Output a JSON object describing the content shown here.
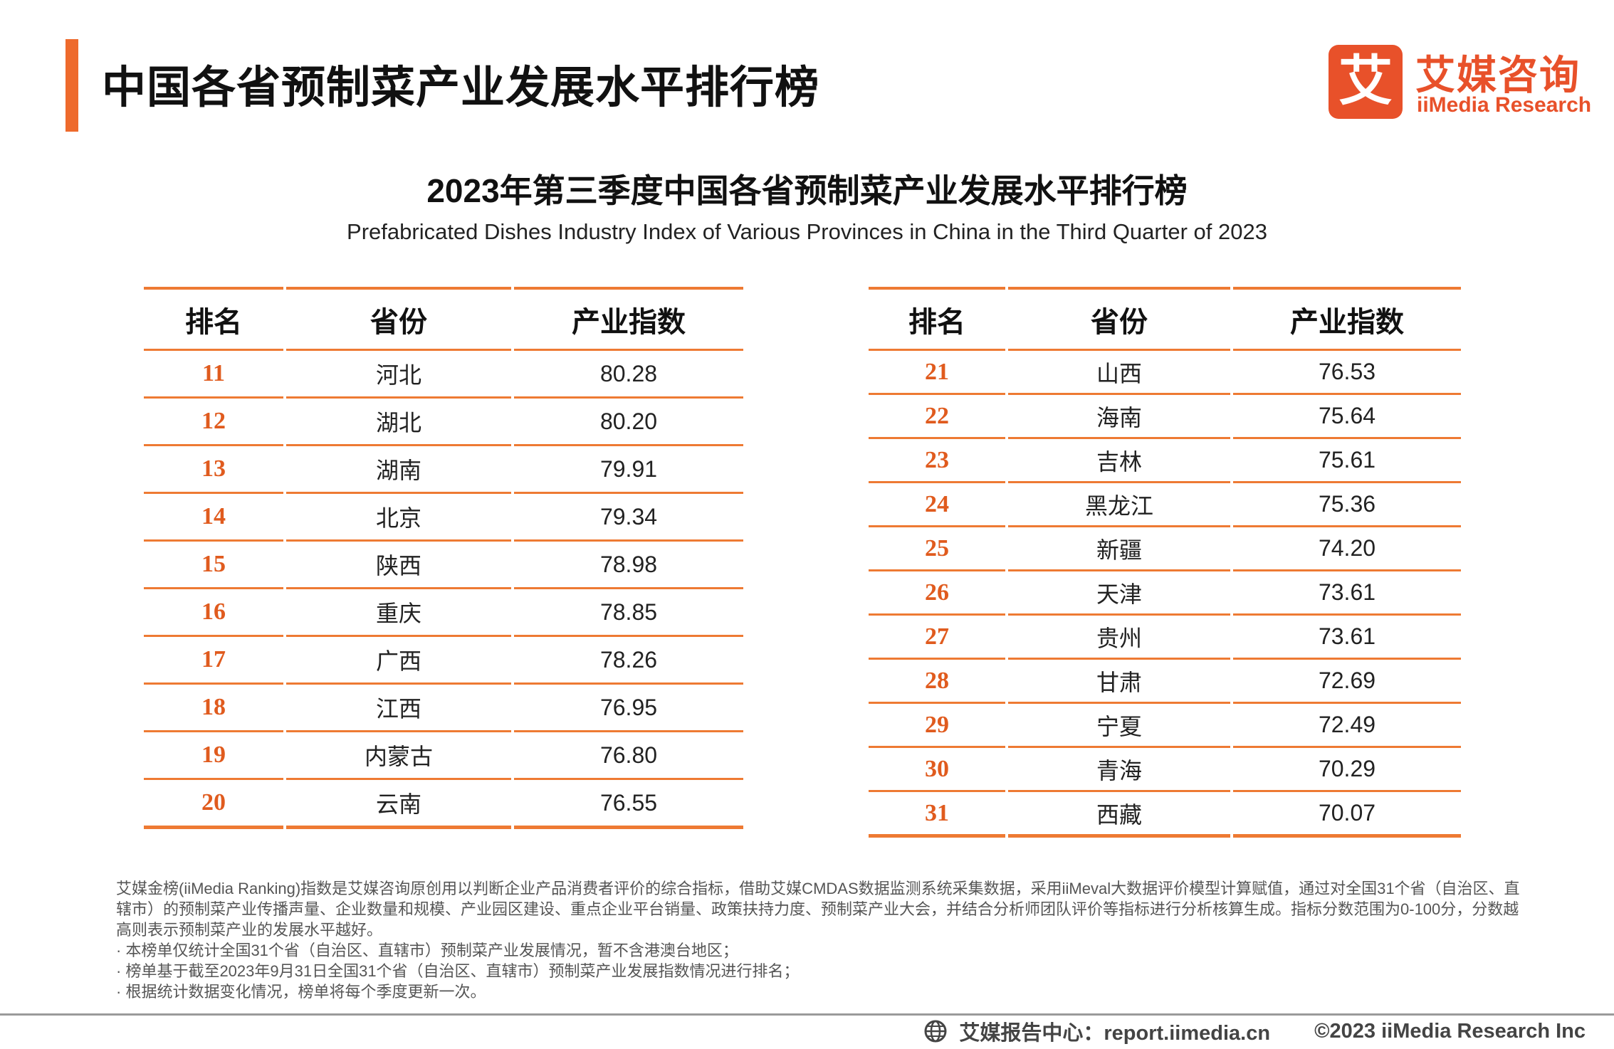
{
  "header": {
    "title": "中国各省预制菜产业发展水平排行榜",
    "logo_mark": "艾",
    "logo_cn": "艾媒咨询",
    "logo_en": "iiMedia Research"
  },
  "report": {
    "title": "2023年第三季度中国各省预制菜产业发展水平排行榜",
    "title_en": "Prefabricated Dishes Industry Index of Various Provinces in China in the Third Quarter of 2023"
  },
  "table": {
    "columns": [
      "排名",
      "省份",
      "产业指数"
    ],
    "left_rows": [
      {
        "rank": "11",
        "province": "河北",
        "index": "80.28"
      },
      {
        "rank": "12",
        "province": "湖北",
        "index": "80.20"
      },
      {
        "rank": "13",
        "province": "湖南",
        "index": "79.91"
      },
      {
        "rank": "14",
        "province": "北京",
        "index": "79.34"
      },
      {
        "rank": "15",
        "province": "陕西",
        "index": "78.98"
      },
      {
        "rank": "16",
        "province": "重庆",
        "index": "78.85"
      },
      {
        "rank": "17",
        "province": "广西",
        "index": "78.26"
      },
      {
        "rank": "18",
        "province": "江西",
        "index": "76.95"
      },
      {
        "rank": "19",
        "province": "内蒙古",
        "index": "76.80"
      },
      {
        "rank": "20",
        "province": "云南",
        "index": "76.55"
      }
    ],
    "right_rows": [
      {
        "rank": "21",
        "province": "山西",
        "index": "76.53"
      },
      {
        "rank": "22",
        "province": "海南",
        "index": "75.64"
      },
      {
        "rank": "23",
        "province": "吉林",
        "index": "75.61"
      },
      {
        "rank": "24",
        "province": "黑龙江",
        "index": "75.36"
      },
      {
        "rank": "25",
        "province": "新疆",
        "index": "74.20"
      },
      {
        "rank": "26",
        "province": "天津",
        "index": "73.61"
      },
      {
        "rank": "27",
        "province": "贵州",
        "index": "73.61"
      },
      {
        "rank": "28",
        "province": "甘肃",
        "index": "72.69"
      },
      {
        "rank": "29",
        "province": "宁夏",
        "index": "72.49"
      },
      {
        "rank": "30",
        "province": "青海",
        "index": "70.29"
      },
      {
        "rank": "31",
        "province": "西藏",
        "index": "70.07"
      }
    ]
  },
  "notes": [
    "艾媒金榜(iiMedia Ranking)指数是艾媒咨询原创用以判断企业产品消费者评价的综合指标，借助艾媒CMDAS数据监测系统采集数据，采用iiMeval大数据评价模型计算赋值，通过对全国31个省（自治区、直辖市）的预制菜产业传播声量、企业数量和规模、产业园区建设、重点企业平台销量、政策扶持力度、预制菜产业大会，并结合分析师团队评价等指标进行分析核算生成。指标分数范围为0-100分，分数越高则表示预制菜产业的发展水平越好。",
    "· 本榜单仅统计全国31个省（自治区、直辖市）预制菜产业发展情况，暂不含港澳台地区；",
    "· 榜单基于截至2023年9月31日全国31个省（自治区、直辖市）预制菜产业发展指数情况进行排名；",
    "· 根据统计数据变化情况，榜单将每个季度更新一次。"
  ],
  "footer": {
    "report_center": "艾媒报告中心：report.iimedia.cn",
    "copyright": "©2023  iiMedia Research  Inc"
  }
}
